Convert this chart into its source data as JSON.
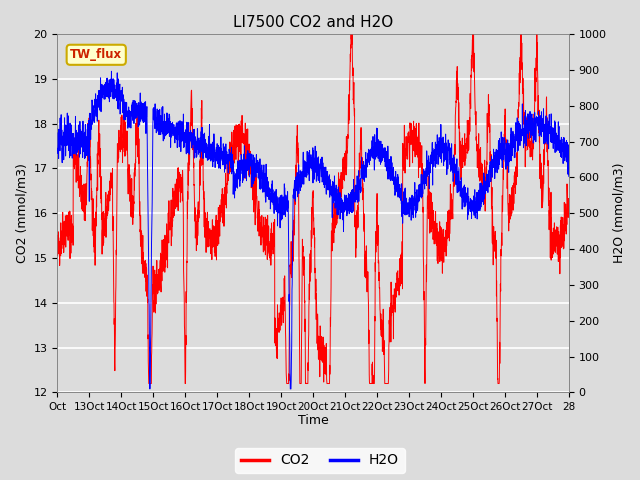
{
  "title": "LI7500 CO2 and H2O",
  "xlabel": "Time",
  "ylabel_left": "CO2 (mmol/m3)",
  "ylabel_right": "H2O (mmol/m3)",
  "ylim_left": [
    12.0,
    20.0
  ],
  "ylim_right": [
    0,
    1000
  ],
  "yticks_left": [
    12.0,
    13.0,
    14.0,
    15.0,
    16.0,
    17.0,
    18.0,
    19.0,
    20.0
  ],
  "yticks_right": [
    0,
    100,
    200,
    300,
    400,
    500,
    600,
    700,
    800,
    900,
    1000
  ],
  "xtick_labels": [
    "Oct",
    "13Oct",
    "14Oct",
    "15Oct",
    "16Oct",
    "17Oct",
    "18Oct",
    "19Oct",
    "20Oct",
    "21Oct",
    "22Oct",
    "23Oct",
    "24Oct",
    "25Oct",
    "26Oct",
    "27Oct",
    "28"
  ],
  "watermark_text": "TW_flux",
  "co2_color": "#FF0000",
  "h2o_color": "#0000FF",
  "fig_bg_color": "#DCDCDC",
  "plot_bg_color": "#DCDCDC",
  "grid_color": "#FFFFFF",
  "legend_co2": "CO2",
  "legend_h2o": "H2O",
  "linewidth": 0.7
}
